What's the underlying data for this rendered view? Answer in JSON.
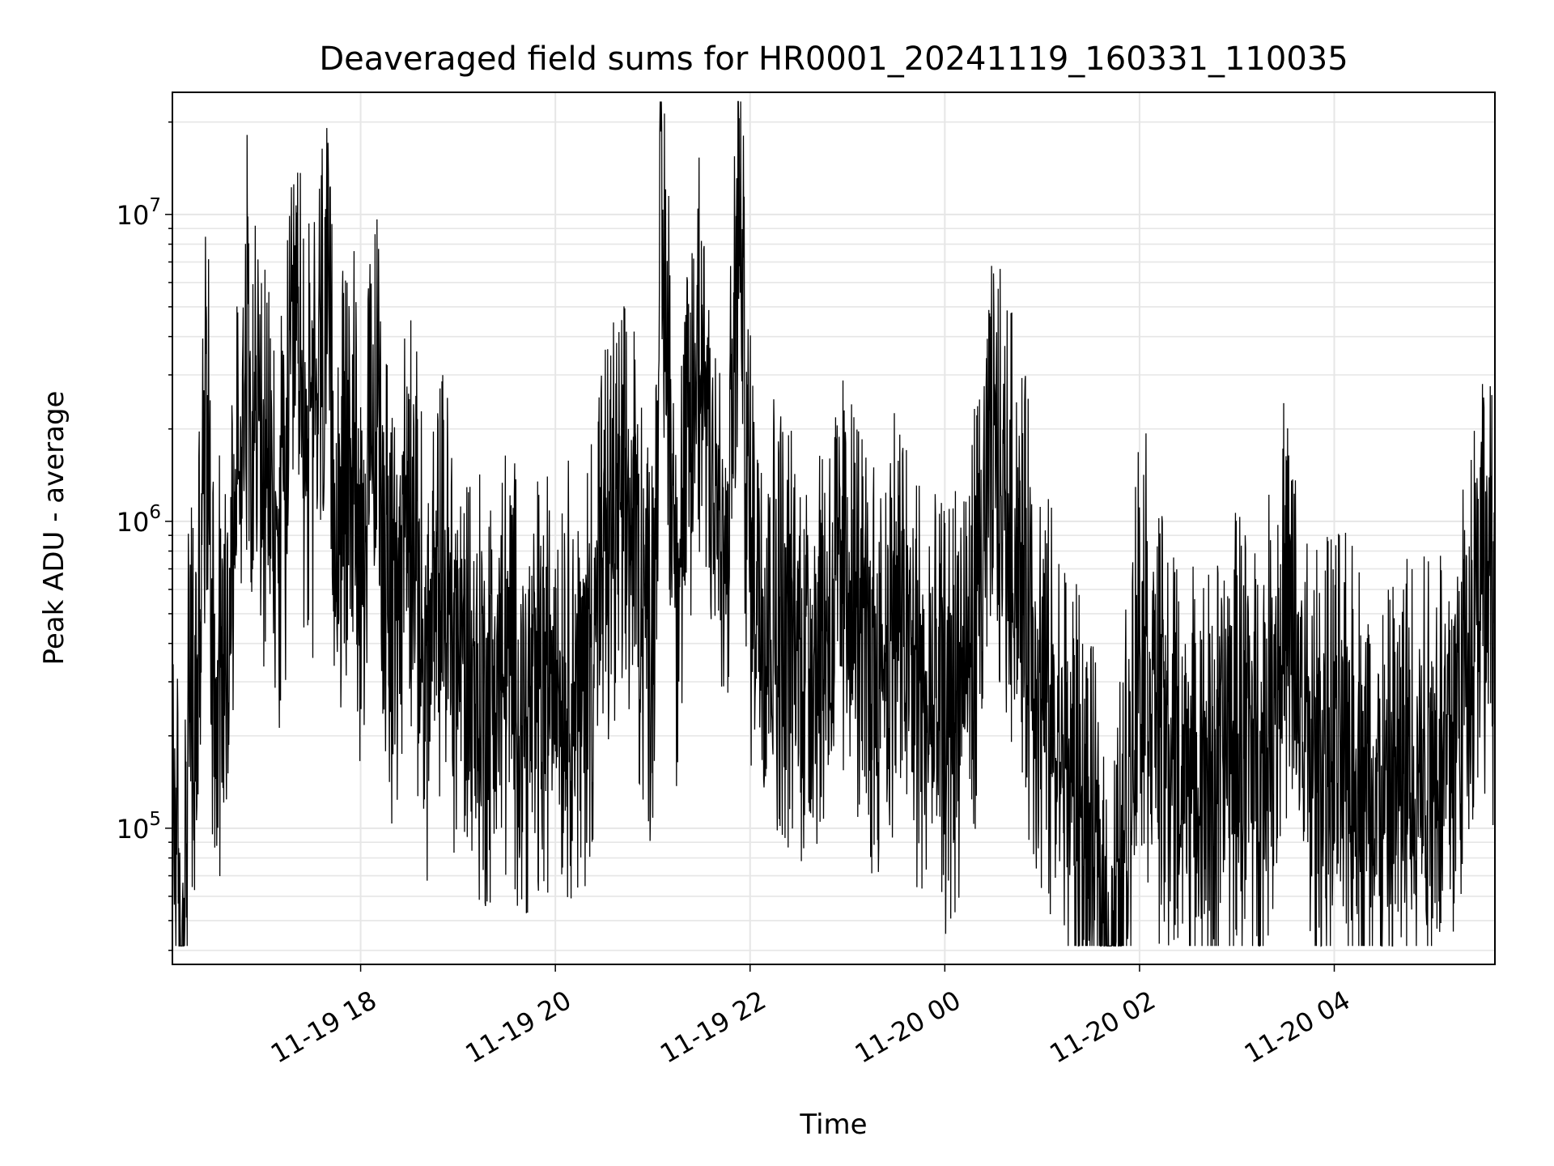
{
  "chart_data": {
    "type": "line",
    "title": "Deaveraged field sums for HR0001_20241119_160331_110035",
    "xlabel": "Time",
    "ylabel": "Peak ADU - average",
    "yscale": "log",
    "xlim": [
      "2024-11-19 16:04",
      "2024-11-20 05:39"
    ],
    "ylim": [
      36000,
      25000000
    ],
    "grid": true,
    "line_color": "#000000",
    "x_ticks": [
      {
        "value": "2024-11-19 18:00",
        "label": "11-19 18"
      },
      {
        "value": "2024-11-19 20:00",
        "label": "11-19 20"
      },
      {
        "value": "2024-11-19 22:00",
        "label": "11-19 22"
      },
      {
        "value": "2024-11-20 00:00",
        "label": "11-20 00"
      },
      {
        "value": "2024-11-20 02:00",
        "label": "11-20 02"
      },
      {
        "value": "2024-11-20 04:00",
        "label": "11-20 04"
      }
    ],
    "y_ticks": [
      {
        "value": 100000,
        "base": "10",
        "exp": "5"
      },
      {
        "value": 1000000,
        "base": "10",
        "exp": "6"
      },
      {
        "value": 10000000,
        "base": "10",
        "exp": "7"
      }
    ],
    "series": [
      {
        "x": [
          "2024-11-19 16:04",
          "2024-11-19 16:10",
          "2024-11-19 16:15",
          "2024-11-19 16:18",
          "2024-11-19 16:25",
          "2024-11-19 16:30",
          "2024-11-19 16:40",
          "2024-11-19 16:50",
          "2024-11-19 17:00",
          "2024-11-19 17:10",
          "2024-11-19 17:20",
          "2024-11-19 17:30",
          "2024-11-19 17:38",
          "2024-11-19 17:45",
          "2024-11-19 17:55",
          "2024-11-19 18:00",
          "2024-11-19 18:10",
          "2024-11-19 18:20",
          "2024-11-19 18:30",
          "2024-11-19 18:40",
          "2024-11-19 18:50",
          "2024-11-19 19:00",
          "2024-11-19 19:15",
          "2024-11-19 19:30",
          "2024-11-19 19:45",
          "2024-11-19 20:00",
          "2024-11-19 20:15",
          "2024-11-19 20:30",
          "2024-11-19 20:45",
          "2024-11-19 21:00",
          "2024-11-19 21:05",
          "2024-11-19 21:15",
          "2024-11-19 21:30",
          "2024-11-19 21:45",
          "2024-11-19 21:53",
          "2024-11-19 22:00",
          "2024-11-19 22:15",
          "2024-11-19 22:30",
          "2024-11-19 22:45",
          "2024-11-19 23:00",
          "2024-11-19 23:15",
          "2024-11-19 23:30",
          "2024-11-19 23:45",
          "2024-11-20 00:00",
          "2024-11-20 00:15",
          "2024-11-20 00:30",
          "2024-11-20 00:45",
          "2024-11-20 01:00",
          "2024-11-20 01:15",
          "2024-11-20 01:30",
          "2024-11-20 01:45",
          "2024-11-20 02:00",
          "2024-11-20 02:15",
          "2024-11-20 02:30",
          "2024-11-20 02:45",
          "2024-11-20 03:00",
          "2024-11-20 03:15",
          "2024-11-20 03:30",
          "2024-11-20 03:45",
          "2024-11-20 04:00",
          "2024-11-20 04:15",
          "2024-11-20 04:30",
          "2024-11-20 04:45",
          "2024-11-20 05:00",
          "2024-11-20 05:15",
          "2024-11-20 05:30",
          "2024-11-20 05:39"
        ],
        "y": [
          400000,
          49000,
          600000,
          350000,
          4500000,
          500000,
          1200000,
          8000000,
          2500000,
          1500000,
          6500000,
          3000000,
          9800000,
          1800000,
          3500000,
          1500000,
          4000000,
          800000,
          2500000,
          600000,
          1200000,
          700000,
          500000,
          650000,
          450000,
          700000,
          500000,
          1500000,
          2000000,
          800000,
          20000000,
          1200000,
          8200000,
          1000000,
          19000000,
          1500000,
          1000000,
          700000,
          900000,
          1200000,
          600000,
          1000000,
          500000,
          400000,
          700000,
          2800000,
          1500000,
          500000,
          300000,
          150000,
          70000,
          900000,
          350000,
          300000,
          250000,
          400000,
          300000,
          1000000,
          280000,
          350000,
          300000,
          200000,
          300000,
          350000,
          400000,
          1500000,
          900000
        ]
      }
    ]
  }
}
